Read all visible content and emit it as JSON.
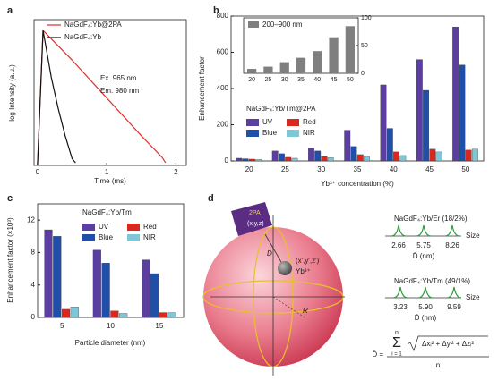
{
  "chart_data": [
    {
      "type": "line",
      "label": "a",
      "xlabel": "Time (ms)",
      "ylabel": "log Intensity (a.u.)",
      "xlim": [
        -0.05,
        2.15
      ],
      "ylim": [
        0,
        1.08
      ],
      "xticks": [
        0,
        1,
        2
      ],
      "series": [
        {
          "name": "NaGdF₄:Yb@2PA",
          "color": "#e0302a",
          "x": [
            0,
            0.08,
            0.5,
            1.0,
            1.5,
            1.8,
            1.85
          ],
          "values": [
            0,
            1.0,
            0.78,
            0.5,
            0.22,
            0.06,
            0.02
          ]
        },
        {
          "name": "NaGdF₄:Yb",
          "color": "#111111",
          "x": [
            0,
            0.08,
            0.2,
            0.3,
            0.4,
            0.5,
            0.55
          ],
          "values": [
            0,
            1.0,
            0.65,
            0.42,
            0.22,
            0.05,
            0.02
          ]
        }
      ],
      "annotations": [
        "Ex. 965 nm",
        "Em. 980 nm"
      ]
    },
    {
      "type": "bar",
      "label": "b",
      "title": "NaGdF₄:Yb/Tm@2PA",
      "xlabel": "Yb³⁺ concentration (%)",
      "ylabel": "Enhancement factor",
      "categories": [
        "20",
        "25",
        "30",
        "35",
        "40",
        "45",
        "50"
      ],
      "ylim": [
        0,
        800
      ],
      "yticks": [
        0,
        200,
        400,
        600,
        800
      ],
      "series": [
        {
          "name": "UV",
          "color": "#5b3fa0",
          "values": [
            15,
            55,
            70,
            170,
            420,
            560,
            740
          ]
        },
        {
          "name": "Blue",
          "color": "#1f4fa8",
          "values": [
            12,
            40,
            55,
            80,
            180,
            390,
            530
          ]
        },
        {
          "name": "Red",
          "color": "#d9281e",
          "values": [
            10,
            20,
            25,
            35,
            50,
            65,
            60
          ]
        },
        {
          "name": "NIR",
          "color": "#7fc6d6",
          "values": [
            8,
            15,
            18,
            25,
            30,
            50,
            65
          ]
        }
      ],
      "inset": {
        "legend": "200–900 nm",
        "color": "#7f7f7f",
        "categories": [
          "20",
          "25",
          "30",
          "35",
          "40",
          "45",
          "50"
        ],
        "values": [
          8,
          12,
          20,
          28,
          40,
          65,
          85
        ],
        "ylim": [
          0,
          100
        ],
        "yticks": [
          0,
          50,
          100
        ]
      }
    },
    {
      "type": "bar",
      "label": "c",
      "title": "NaGdF₄:Yb/Tm",
      "xlabel": "Particle diameter (nm)",
      "ylabel": "Enhancement factor (×10³)",
      "categories": [
        "5",
        "10",
        "15"
      ],
      "ylim": [
        0,
        14
      ],
      "yticks": [
        0,
        4,
        8,
        12
      ],
      "series": [
        {
          "name": "UV",
          "color": "#5b3fa0",
          "values": [
            10.8,
            8.3,
            7.1
          ]
        },
        {
          "name": "Blue",
          "color": "#1f4fa8",
          "values": [
            10.0,
            6.7,
            5.4
          ]
        },
        {
          "name": "Red",
          "color": "#d9281e",
          "values": [
            1.0,
            0.8,
            0.6
          ]
        },
        {
          "name": "NIR",
          "color": "#7fc6d6",
          "values": [
            1.3,
            0.5,
            0.6
          ]
        }
      ]
    }
  ],
  "diagram": {
    "label": "d",
    "tag": "2PA",
    "tag_coords": "(x,y,z)",
    "distance": "D",
    "ion_coords": "(x′,y′,z′)",
    "ion": "Yb³⁺",
    "radius": "R",
    "er": {
      "title": "NaGdF₄:Yb/Er (18/2%)",
      "peaks": [
        "2.66",
        "5.75",
        "8.26"
      ],
      "size": "Size",
      "axis": "D̄ (nm)"
    },
    "tm": {
      "title": "NaGdF₄:Yb/Tm (49/1%)",
      "peaks": [
        "3.23",
        "5.90",
        "9.59"
      ],
      "size": "Size",
      "axis": "D̄ (nm)"
    },
    "formula": {
      "lhs": "D̄ =",
      "sum_top": "n",
      "sigma": "Σ",
      "sum_bottom": "i = 1",
      "root": "Δxᵢ² + Δyᵢ² + Δzᵢ²",
      "denominator": "n"
    }
  }
}
